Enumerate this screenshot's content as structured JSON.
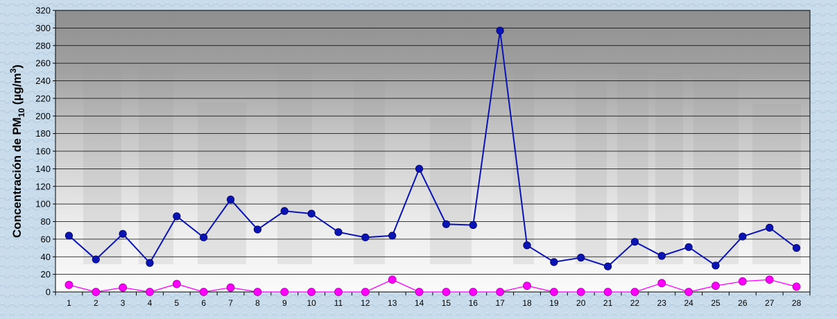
{
  "chart_data": {
    "type": "line",
    "title": "",
    "xlabel": "",
    "ylabel": "Concentración de PM",
    "ylabel_subscript": "10",
    "ylabel_unit_prefix": " (µg/m",
    "ylabel_unit_superscript": "3",
    "ylabel_unit_suffix": ")",
    "x": [
      "1",
      "2",
      "3",
      "4",
      "5",
      "6",
      "7",
      "8",
      "9",
      "10",
      "11",
      "12",
      "13",
      "14",
      "15",
      "16",
      "17",
      "18",
      "19",
      "20",
      "21",
      "22",
      "23",
      "24",
      "25",
      "26",
      "27",
      "28"
    ],
    "ylim": [
      0,
      320
    ],
    "yticks": [
      0,
      20,
      40,
      60,
      80,
      100,
      120,
      140,
      160,
      180,
      200,
      220,
      240,
      260,
      280,
      300,
      320
    ],
    "grid": true,
    "legend": "none",
    "series": [
      {
        "color": "#0a14b4",
        "values": [
          64,
          37,
          66,
          33,
          86,
          62,
          105,
          71,
          92,
          89,
          68,
          62,
          64,
          140,
          77,
          76,
          297,
          53,
          34,
          39,
          29,
          57,
          41,
          51,
          30,
          63,
          73,
          50
        ]
      },
      {
        "color": "#ff00ff",
        "values": [
          8,
          0,
          5,
          0,
          9,
          0,
          5,
          0,
          0,
          0,
          0,
          0,
          14,
          0,
          0,
          0,
          0,
          7,
          0,
          0,
          0,
          0,
          10,
          0,
          7,
          12,
          14,
          6
        ]
      }
    ],
    "plot_background": "#a9a9a9",
    "page_background": "#c9dcec"
  }
}
